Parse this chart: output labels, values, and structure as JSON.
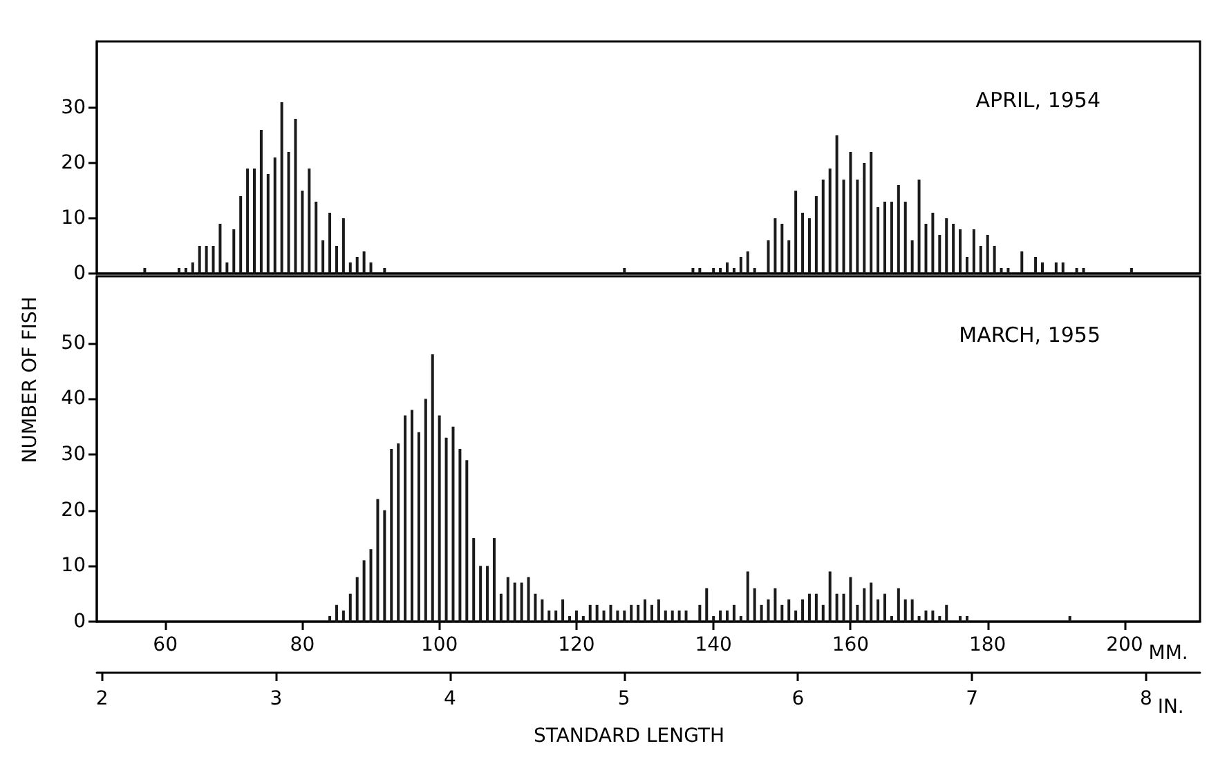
{
  "chart_data": [
    {
      "type": "bar",
      "title": "APRIL, 1954",
      "color": "#1a1a1a",
      "x": [
        57,
        62,
        63,
        64,
        65,
        66,
        67,
        68,
        69,
        70,
        71,
        72,
        73,
        74,
        75,
        76,
        77,
        78,
        79,
        80,
        81,
        82,
        83,
        84,
        85,
        86,
        87,
        88,
        89,
        90,
        92,
        127,
        137,
        138,
        140,
        141,
        142,
        143,
        144,
        145,
        146,
        148,
        149,
        150,
        151,
        152,
        153,
        154,
        155,
        156,
        157,
        158,
        159,
        160,
        161,
        162,
        163,
        164,
        165,
        166,
        167,
        168,
        169,
        170,
        171,
        172,
        173,
        174,
        175,
        176,
        177,
        178,
        179,
        180,
        181,
        182,
        183,
        185,
        187,
        188,
        190,
        191,
        193,
        194,
        201
      ],
      "values": [
        1,
        1,
        1,
        2,
        5,
        5,
        5,
        9,
        2,
        8,
        14,
        19,
        19,
        26,
        18,
        21,
        31,
        22,
        28,
        15,
        19,
        13,
        6,
        11,
        5,
        10,
        2,
        3,
        4,
        2,
        1,
        1,
        1,
        1,
        1,
        1,
        2,
        1,
        3,
        4,
        1,
        6,
        10,
        9,
        6,
        15,
        11,
        10,
        14,
        17,
        19,
        25,
        17,
        22,
        17,
        20,
        22,
        12,
        13,
        13,
        16,
        13,
        6,
        17,
        9,
        11,
        7,
        10,
        9,
        8,
        3,
        8,
        5,
        7,
        5,
        1,
        1,
        4,
        3,
        2,
        2,
        2,
        1,
        1,
        1
      ],
      "xlim": [
        50,
        211
      ],
      "ylim": [
        0,
        42
      ],
      "yticks": [
        0,
        10,
        20,
        30
      ],
      "tick_labels": "y"
    },
    {
      "type": "bar",
      "title": "MARCH, 1955",
      "ylabel": "NUMBER OF FISH",
      "xlabel": "MM.",
      "x2label": "IN.",
      "color": "#1a1a1a",
      "annotations": [
        "STANDARD LENGTH"
      ],
      "x": [
        84,
        85,
        86,
        87,
        88,
        89,
        90,
        91,
        92,
        93,
        94,
        95,
        96,
        97,
        98,
        99,
        100,
        101,
        102,
        103,
        104,
        105,
        106,
        107,
        108,
        109,
        110,
        111,
        112,
        113,
        114,
        115,
        116,
        117,
        118,
        119,
        120,
        121,
        122,
        123,
        124,
        125,
        126,
        127,
        128,
        129,
        130,
        131,
        132,
        133,
        134,
        135,
        136,
        138,
        139,
        140,
        141,
        142,
        143,
        144,
        145,
        146,
        147,
        148,
        149,
        150,
        151,
        152,
        153,
        154,
        155,
        156,
        157,
        158,
        159,
        160,
        161,
        162,
        163,
        164,
        165,
        166,
        167,
        168,
        169,
        170,
        171,
        172,
        173,
        174,
        176,
        177,
        192
      ],
      "values": [
        1,
        3,
        2,
        5,
        8,
        11,
        13,
        22,
        20,
        31,
        32,
        37,
        38,
        34,
        40,
        48,
        37,
        33,
        35,
        31,
        29,
        15,
        10,
        10,
        15,
        5,
        8,
        7,
        7,
        8,
        5,
        4,
        2,
        2,
        4,
        1,
        2,
        1,
        3,
        3,
        2,
        3,
        2,
        2,
        3,
        3,
        4,
        3,
        4,
        2,
        2,
        2,
        2,
        3,
        6,
        1,
        2,
        2,
        3,
        1,
        9,
        6,
        3,
        4,
        6,
        3,
        4,
        2,
        4,
        5,
        5,
        3,
        9,
        5,
        5,
        8,
        3,
        6,
        7,
        4,
        5,
        1,
        6,
        4,
        4,
        1,
        2,
        2,
        1,
        3,
        1,
        1,
        1
      ],
      "xlim": [
        50,
        211
      ],
      "xticks": [
        60,
        80,
        100,
        120,
        140,
        160,
        180,
        200
      ],
      "x2lim": [
        1.97,
        8.31
      ],
      "x2ticks": [
        2,
        3,
        4,
        5,
        6,
        7,
        8
      ],
      "ylim": [
        0,
        62
      ],
      "yticks": [
        0,
        10,
        20,
        30,
        40,
        50
      ]
    }
  ]
}
